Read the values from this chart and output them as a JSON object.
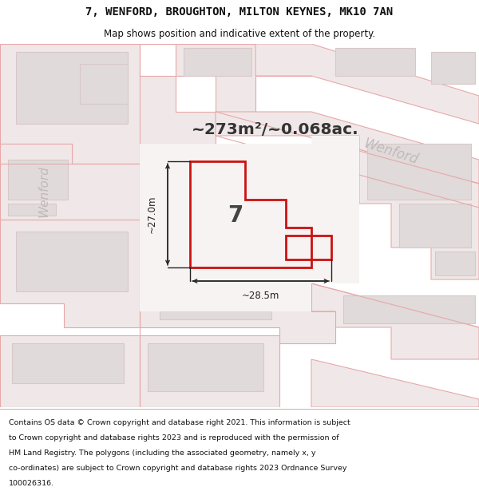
{
  "title_line1": "7, WENFORD, BROUGHTON, MILTON KEYNES, MK10 7AN",
  "title_line2": "Map shows position and indicative extent of the property.",
  "area_text": "~273m²/~0.068ac.",
  "plot_number": "7",
  "wenford_label_diag": "Wenford",
  "wenford_label_vert": "Wenford",
  "dim_vertical": "~27.0m",
  "dim_horizontal": "~28.5m",
  "footer_lines": [
    "Contains OS data © Crown copyright and database right 2021. This information is subject",
    "to Crown copyright and database rights 2023 and is reproduced with the permission of",
    "HM Land Registry. The polygons (including the associated geometry, namely x, y",
    "co-ordinates) are subject to Crown copyright and database rights 2023 Ordnance Survey",
    "100026316."
  ],
  "map_bg": "#f7f3f3",
  "road_fill": "#f0e8e8",
  "road_line": "#e8a8a8",
  "bld_fill": "#e0dada",
  "bld_line": "#d8c8c8",
  "plot_color": "#cc1111",
  "dim_color": "#222222",
  "wenford_diag_color": "#bbbbbb",
  "wenford_vert_color": "#bbbbbb",
  "area_color": "#333333",
  "num_color": "#444444",
  "title_bg": "#ffffff",
  "footer_bg": "#ffffff",
  "footer_color": "#111111"
}
